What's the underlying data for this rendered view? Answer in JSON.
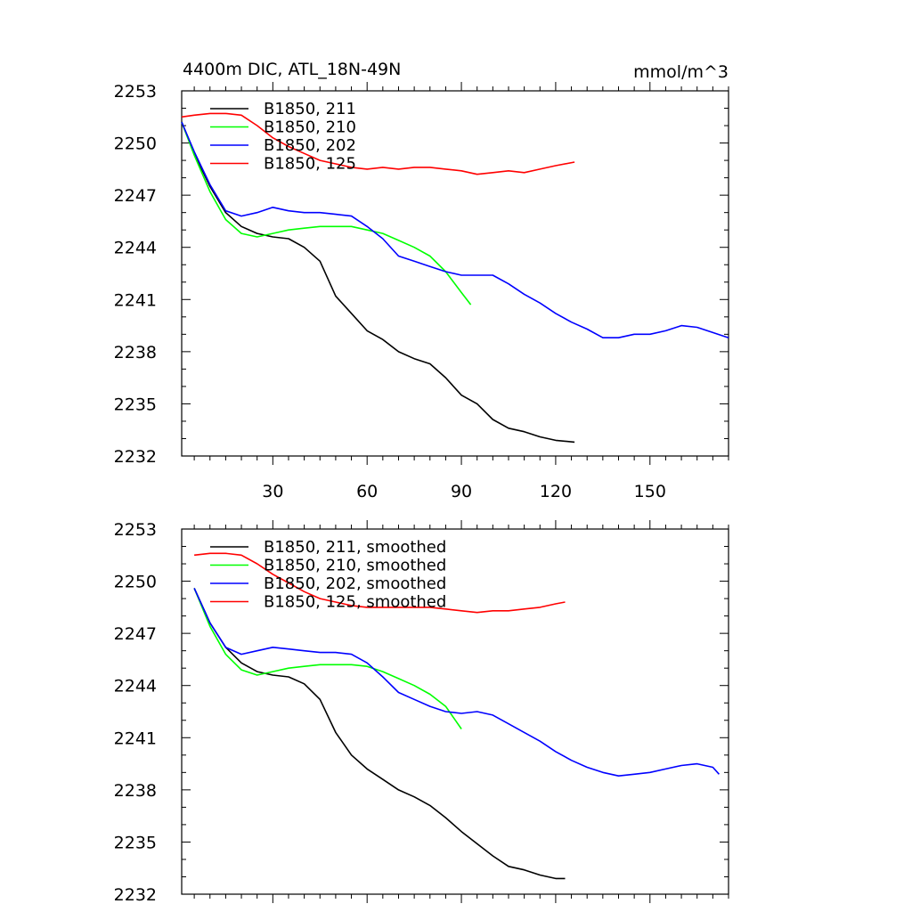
{
  "chart_data": [
    {
      "type": "line",
      "title": "4400m DIC, ATL_18N-49N",
      "units": "mmol/m^3",
      "xlim": [
        1,
        175
      ],
      "ylim": [
        2232,
        2253
      ],
      "yticks": [
        "2232",
        "2235",
        "2238",
        "2241",
        "2244",
        "2247",
        "2250",
        "2253"
      ],
      "xticks": [
        "30",
        "60",
        "90",
        "120",
        "150"
      ],
      "series": [
        {
          "name": "B1850, 211",
          "color": "#000000",
          "x": [
            1,
            5,
            10,
            15,
            20,
            25,
            30,
            35,
            40,
            45,
            50,
            55,
            60,
            65,
            70,
            75,
            80,
            85,
            90,
            95,
            100,
            105,
            110,
            115,
            120,
            126
          ],
          "y": [
            2251.2,
            2249.4,
            2247.5,
            2246.0,
            2245.2,
            2244.8,
            2244.6,
            2244.5,
            2244.0,
            2243.2,
            2241.2,
            2240.2,
            2239.2,
            2238.7,
            2238.0,
            2237.6,
            2237.3,
            2236.5,
            2235.5,
            2235.0,
            2234.1,
            2233.6,
            2233.4,
            2233.1,
            2232.9,
            2232.8
          ]
        },
        {
          "name": "B1850, 210",
          "color": "#00ff00",
          "x": [
            1,
            5,
            10,
            15,
            20,
            25,
            30,
            35,
            40,
            45,
            50,
            55,
            60,
            65,
            70,
            75,
            80,
            85,
            90,
            93
          ],
          "y": [
            2251.2,
            2249.3,
            2247.2,
            2245.6,
            2244.8,
            2244.6,
            2244.8,
            2245.0,
            2245.1,
            2245.2,
            2245.2,
            2245.2,
            2245.0,
            2244.8,
            2244.4,
            2244.0,
            2243.5,
            2242.6,
            2241.4,
            2240.7
          ]
        },
        {
          "name": "B1850, 202",
          "color": "#0000ff",
          "x": [
            1,
            5,
            10,
            15,
            20,
            25,
            30,
            35,
            40,
            45,
            50,
            55,
            60,
            65,
            70,
            75,
            80,
            85,
            90,
            95,
            100,
            105,
            110,
            115,
            120,
            125,
            130,
            135,
            140,
            145,
            150,
            155,
            160,
            165,
            170,
            175
          ],
          "y": [
            2251.2,
            2249.5,
            2247.6,
            2246.1,
            2245.8,
            2246.0,
            2246.3,
            2246.1,
            2246.0,
            2246.0,
            2245.9,
            2245.8,
            2245.2,
            2244.5,
            2243.5,
            2243.2,
            2242.9,
            2242.6,
            2242.4,
            2242.4,
            2242.4,
            2241.9,
            2241.3,
            2240.8,
            2240.2,
            2239.7,
            2239.3,
            2238.8,
            2238.8,
            2239.0,
            2239.0,
            2239.2,
            2239.5,
            2239.4,
            2239.1,
            2238.8
          ]
        },
        {
          "name": "B1850, 125",
          "color": "#ff0000",
          "x": [
            1,
            5,
            10,
            15,
            20,
            25,
            30,
            35,
            40,
            45,
            50,
            55,
            60,
            65,
            70,
            75,
            80,
            85,
            90,
            95,
            100,
            105,
            110,
            115,
            120,
            126
          ],
          "y": [
            2251.5,
            2251.6,
            2251.7,
            2251.7,
            2251.6,
            2251.0,
            2250.3,
            2249.8,
            2249.4,
            2249.0,
            2248.8,
            2248.6,
            2248.5,
            2248.6,
            2248.5,
            2248.6,
            2248.6,
            2248.5,
            2248.4,
            2248.2,
            2248.3,
            2248.4,
            2248.3,
            2248.5,
            2248.7,
            2248.9
          ]
        }
      ]
    },
    {
      "type": "line",
      "title": "",
      "xlim": [
        1,
        175
      ],
      "ylim": [
        2232,
        2253
      ],
      "yticks": [
        "2232",
        "2235",
        "2238",
        "2241",
        "2244",
        "2247",
        "2250",
        "2253"
      ],
      "series": [
        {
          "name": "B1850, 211, smoothed",
          "color": "#000000",
          "x": [
            5,
            10,
            15,
            20,
            25,
            30,
            35,
            40,
            45,
            50,
            55,
            60,
            65,
            70,
            75,
            80,
            85,
            90,
            95,
            100,
            105,
            110,
            115,
            120,
            123
          ],
          "y": [
            2249.6,
            2247.6,
            2246.2,
            2245.3,
            2244.8,
            2244.6,
            2244.5,
            2244.1,
            2243.2,
            2241.3,
            2240.0,
            2239.2,
            2238.6,
            2238.0,
            2237.6,
            2237.1,
            2236.4,
            2235.6,
            2234.9,
            2234.2,
            2233.6,
            2233.4,
            2233.1,
            2232.9,
            2232.9
          ]
        },
        {
          "name": "B1850, 210, smoothed",
          "color": "#00ff00",
          "x": [
            5,
            10,
            15,
            20,
            25,
            30,
            35,
            40,
            45,
            50,
            55,
            60,
            65,
            70,
            75,
            80,
            85,
            90
          ],
          "y": [
            2249.6,
            2247.4,
            2245.8,
            2244.9,
            2244.6,
            2244.8,
            2245.0,
            2245.1,
            2245.2,
            2245.2,
            2245.2,
            2245.1,
            2244.8,
            2244.4,
            2244.0,
            2243.5,
            2242.8,
            2241.5
          ]
        },
        {
          "name": "B1850, 202, smoothed",
          "color": "#0000ff",
          "x": [
            5,
            10,
            15,
            20,
            25,
            30,
            35,
            40,
            45,
            50,
            55,
            60,
            65,
            70,
            75,
            80,
            85,
            90,
            95,
            100,
            105,
            110,
            115,
            120,
            125,
            130,
            135,
            140,
            145,
            150,
            155,
            160,
            165,
            170,
            172
          ],
          "y": [
            2249.6,
            2247.6,
            2246.2,
            2245.8,
            2246.0,
            2246.2,
            2246.1,
            2246.0,
            2245.9,
            2245.9,
            2245.8,
            2245.3,
            2244.5,
            2243.6,
            2243.2,
            2242.8,
            2242.5,
            2242.4,
            2242.5,
            2242.3,
            2241.8,
            2241.3,
            2240.8,
            2240.2,
            2239.7,
            2239.3,
            2239.0,
            2238.8,
            2238.9,
            2239.0,
            2239.2,
            2239.4,
            2239.5,
            2239.3,
            2238.9
          ]
        },
        {
          "name": "B1850, 125, smoothed",
          "color": "#ff0000",
          "x": [
            5,
            10,
            15,
            20,
            25,
            30,
            35,
            40,
            45,
            50,
            55,
            60,
            65,
            70,
            75,
            80,
            85,
            90,
            95,
            100,
            105,
            110,
            115,
            120,
            123
          ],
          "y": [
            2251.5,
            2251.6,
            2251.6,
            2251.5,
            2251.0,
            2250.4,
            2249.9,
            2249.4,
            2249.0,
            2248.8,
            2248.6,
            2248.5,
            2248.5,
            2248.5,
            2248.5,
            2248.5,
            2248.4,
            2248.3,
            2248.2,
            2248.3,
            2248.3,
            2248.4,
            2248.5,
            2248.7,
            2248.8
          ]
        }
      ]
    }
  ]
}
